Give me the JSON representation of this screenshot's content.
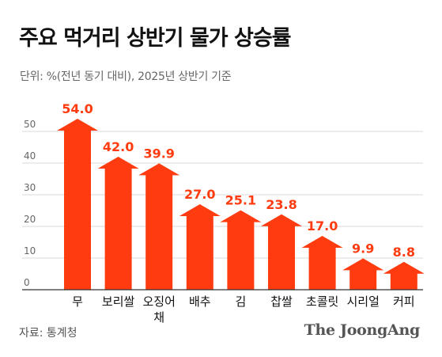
{
  "title": "주요 먹거리 상반기 물가 상승률",
  "subtitle": "단위: %(전년 동기 대비), 2025년 상반기 기준",
  "source": "자료: 통계청",
  "logo": "The JoongAng",
  "colors": {
    "bar": "#FF3B0F",
    "value_label": "#FF3B0F",
    "grid": "#d9d9d9",
    "axis": "#333333"
  },
  "chart_data": {
    "type": "bar",
    "title": "주요 먹거리 상반기 물가 상승률",
    "subtitle": "단위: %(전년 동기 대비), 2025년 상반기 기준",
    "categories": [
      "무",
      "보리쌀",
      "오징어채",
      "배추",
      "김",
      "찹쌀",
      "초콜릿",
      "시리얼",
      "커피"
    ],
    "category_labels": [
      [
        "무"
      ],
      [
        "보리쌀"
      ],
      [
        "오징어",
        "채"
      ],
      [
        "배추"
      ],
      [
        "김"
      ],
      [
        "찹쌀"
      ],
      [
        "초콜릿"
      ],
      [
        "시리얼"
      ],
      [
        "커피"
      ]
    ],
    "values": [
      54.0,
      42.0,
      39.9,
      27.0,
      25.1,
      23.8,
      17.0,
      9.9,
      8.8
    ],
    "value_labels": [
      "54.0",
      "42.0",
      "39.9",
      "27.0",
      "25.1",
      "23.8",
      "17.0",
      "9.9",
      "8.8"
    ],
    "ylim": [
      0,
      55
    ],
    "yticks": [
      0,
      10,
      20,
      30,
      40,
      50
    ],
    "ytick_labels": [
      "0",
      "10",
      "20",
      "30",
      "40",
      "50"
    ],
    "xlabel": "",
    "ylabel": "",
    "grid": true,
    "legend": "none",
    "bar_style": "arrow"
  }
}
